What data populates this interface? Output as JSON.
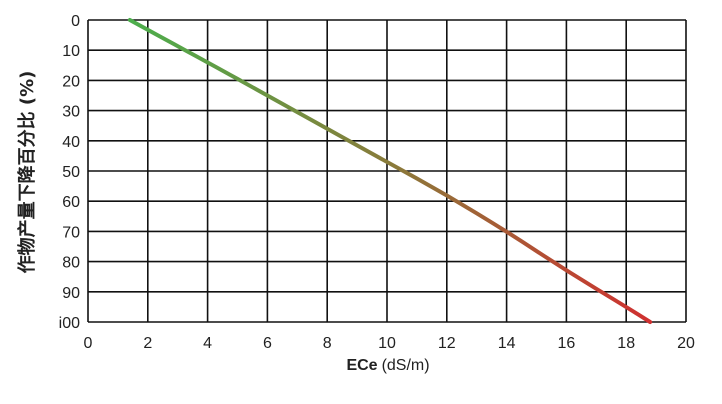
{
  "chart_data": {
    "type": "line",
    "title": "",
    "xlabel_bold": "ECe",
    "xlabel_unit": "(dS/m)",
    "ylabel": "作物产量下降百分比 (%)",
    "xlim": [
      0,
      20
    ],
    "ylim": [
      0,
      100
    ],
    "y_inverted": true,
    "grid": true,
    "x_ticks": [
      "0",
      "2",
      "4",
      "6",
      "8",
      "10",
      "12",
      "14",
      "16",
      "18",
      "20"
    ],
    "y_ticks": [
      "0",
      "10",
      "20",
      "30",
      "40",
      "50",
      "60",
      "70",
      "80",
      "90",
      "i00"
    ],
    "series": [
      {
        "x": [
          1.4,
          2.5,
          4,
          6,
          8,
          10,
          12,
          14,
          16,
          18,
          18.8
        ],
        "y": [
          0,
          6,
          14,
          25,
          36,
          47,
          58,
          70,
          83,
          95,
          100
        ],
        "gradient": [
          "#4cae4c",
          "#8a7a3a",
          "#d03030"
        ]
      }
    ]
  }
}
